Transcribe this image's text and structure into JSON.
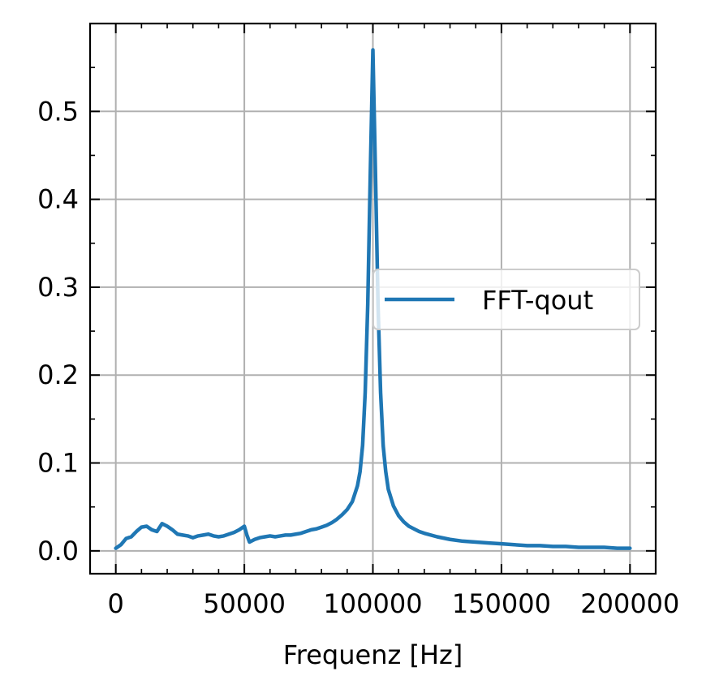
{
  "chart_data": {
    "type": "line",
    "title": "",
    "xlabel": "Frequenz [Hz]",
    "ylabel": "",
    "xlim": [
      -10000,
      210000
    ],
    "ylim": [
      -0.026,
      0.6
    ],
    "xticks": [
      0,
      50000,
      100000,
      150000,
      200000
    ],
    "xtick_labels": [
      "0",
      "50000",
      "100000",
      "150000",
      "200000"
    ],
    "yticks": [
      0.0,
      0.1,
      0.2,
      0.3,
      0.4,
      0.5
    ],
    "ytick_labels": [
      "0.0",
      "0.1",
      "0.2",
      "0.3",
      "0.4",
      "0.5"
    ],
    "grid": true,
    "legend_position": "center-right",
    "series": [
      {
        "name": "FFT-qout",
        "color": "#1f77b4",
        "x": [
          0,
          2000,
          4000,
          6000,
          8000,
          10000,
          12000,
          14000,
          16000,
          18000,
          20000,
          22000,
          24000,
          26000,
          28000,
          30000,
          32000,
          34000,
          36000,
          38000,
          40000,
          42000,
          44000,
          46000,
          48000,
          50000,
          51000,
          52000,
          54000,
          56000,
          58000,
          60000,
          62000,
          64000,
          66000,
          68000,
          70000,
          72000,
          74000,
          76000,
          78000,
          80000,
          82000,
          84000,
          86000,
          88000,
          90000,
          92000,
          94000,
          95000,
          96000,
          97000,
          98000,
          99000,
          100000,
          101000,
          102000,
          103000,
          104000,
          105000,
          106000,
          108000,
          110000,
          112000,
          114000,
          116000,
          118000,
          120000,
          125000,
          130000,
          135000,
          140000,
          145000,
          150000,
          155000,
          160000,
          165000,
          170000,
          175000,
          180000,
          185000,
          190000,
          195000,
          200000
        ],
        "y": [
          0.003,
          0.007,
          0.014,
          0.016,
          0.022,
          0.027,
          0.028,
          0.024,
          0.022,
          0.031,
          0.028,
          0.024,
          0.019,
          0.018,
          0.017,
          0.015,
          0.017,
          0.018,
          0.019,
          0.017,
          0.016,
          0.017,
          0.019,
          0.021,
          0.024,
          0.028,
          0.018,
          0.01,
          0.013,
          0.015,
          0.016,
          0.017,
          0.016,
          0.017,
          0.018,
          0.018,
          0.019,
          0.02,
          0.022,
          0.024,
          0.025,
          0.027,
          0.029,
          0.032,
          0.036,
          0.041,
          0.047,
          0.056,
          0.074,
          0.09,
          0.12,
          0.18,
          0.28,
          0.43,
          0.57,
          0.43,
          0.28,
          0.18,
          0.12,
          0.09,
          0.07,
          0.051,
          0.04,
          0.033,
          0.028,
          0.025,
          0.022,
          0.02,
          0.016,
          0.013,
          0.011,
          0.01,
          0.009,
          0.008,
          0.007,
          0.006,
          0.006,
          0.005,
          0.005,
          0.004,
          0.004,
          0.004,
          0.003,
          0.003
        ]
      }
    ]
  }
}
